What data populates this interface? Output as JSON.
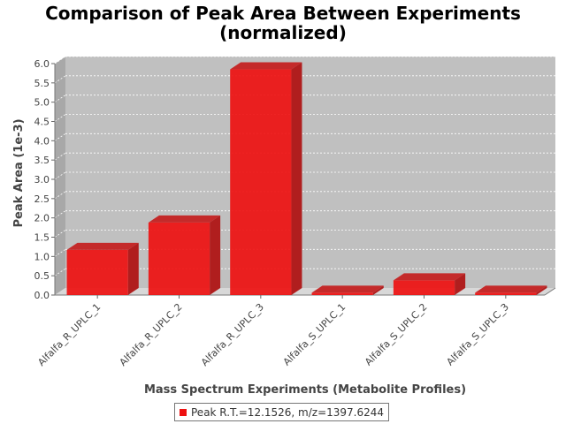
{
  "chart_data": {
    "type": "bar",
    "title_line1": "Comparison of Peak Area Between Experiments",
    "title_line2": "(normalized)",
    "xlabel": "Mass Spectrum Experiments (Metabolite Profiles)",
    "ylabel": "Peak Area (1e-3)",
    "categories": [
      "Alfalfa_R_UPLC_1",
      "Alfalfa_R_UPLC_2",
      "Alfalfa_R_UPLC_3",
      "Alfalfa_S_UPLC_1",
      "Alfalfa_S_UPLC_2",
      "Alfalfa_S_UPLC_3"
    ],
    "series": [
      {
        "name": "Peak R.T.=12.1526, m/z=1397.6244",
        "values": [
          1.17,
          1.88,
          5.85,
          0.06,
          0.38,
          0.06
        ]
      }
    ],
    "ylim": [
      0,
      6.0
    ],
    "yticks": [
      "0.0",
      "0.5",
      "1.0",
      "1.5",
      "2.0",
      "2.5",
      "3.0",
      "3.5",
      "4.0",
      "4.5",
      "5.0",
      "5.5",
      "6.0"
    ],
    "grid": true,
    "legend_position": "bottom",
    "colors": {
      "bar": "#ee1111",
      "bar_top": "#c42a2a",
      "bar_side": "#b01e1e",
      "plot_bg": "#c0c0c0",
      "floor": "#d8d8d8"
    }
  }
}
